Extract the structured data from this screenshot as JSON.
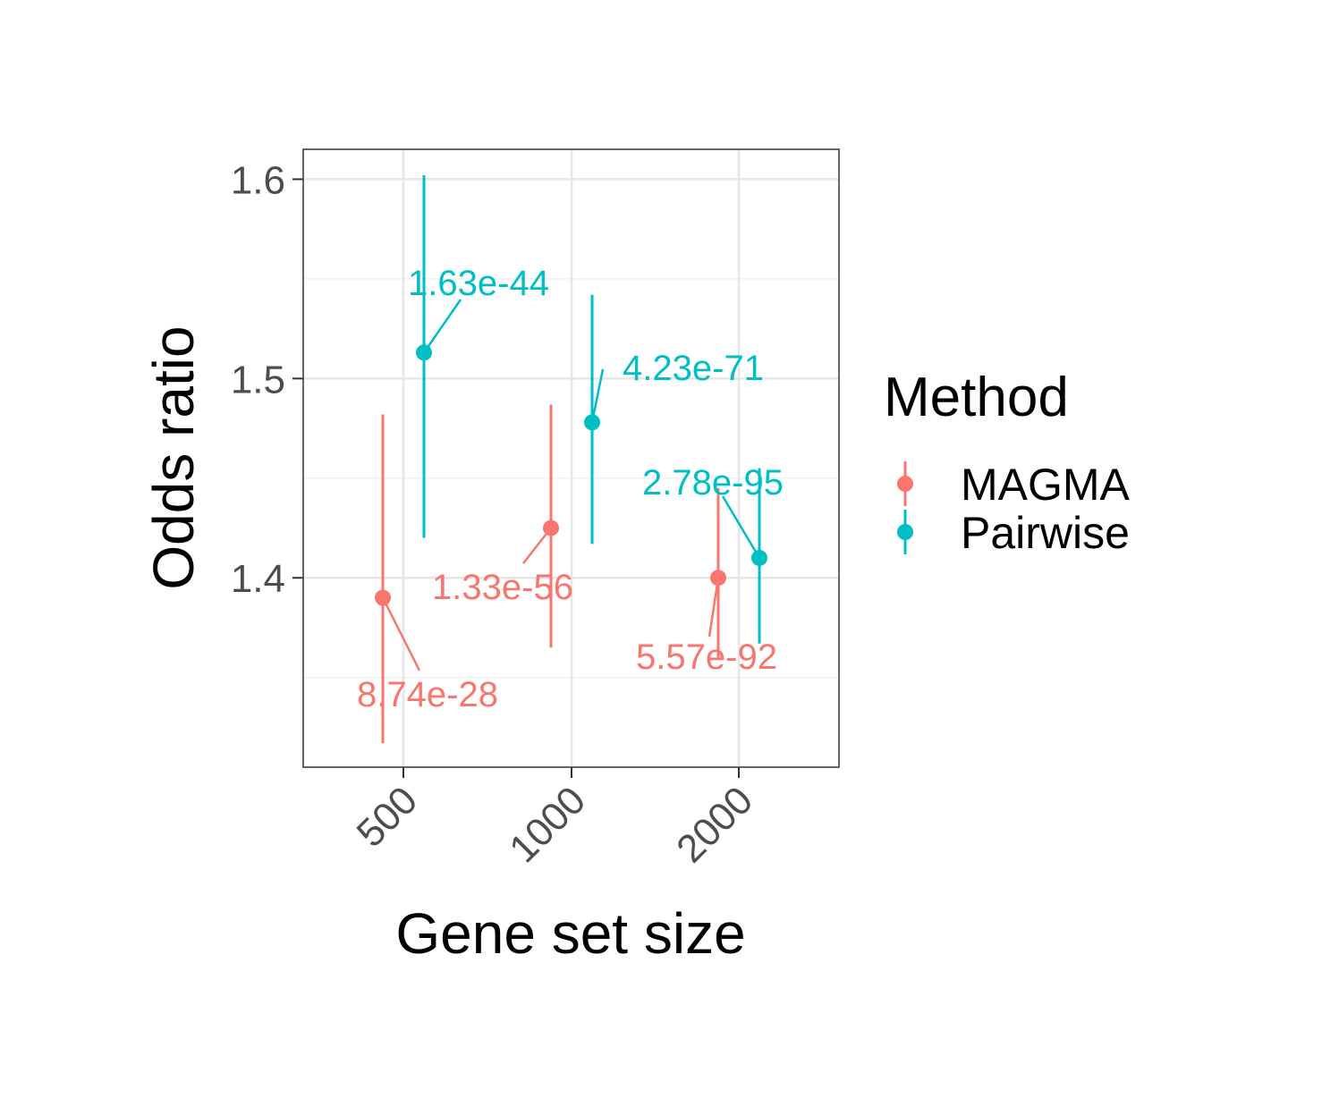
{
  "chart_data": {
    "type": "scatter",
    "xlabel": "Gene set size",
    "ylabel": "Odds ratio",
    "x_scale": "log",
    "x_ticks": [
      "500",
      "1000",
      "2000"
    ],
    "y_ticks": [
      "1.4",
      "1.5",
      "1.6"
    ],
    "ylim": [
      1.305,
      1.615
    ],
    "grid": true,
    "legend": {
      "title": "Method",
      "position": "right"
    },
    "series": [
      {
        "name": "MAGMA",
        "color": "#F8766D",
        "points": [
          {
            "group": "500",
            "y": 1.39,
            "ymin": 1.317,
            "ymax": 1.482,
            "label": "8.74e-28"
          },
          {
            "group": "1000",
            "y": 1.425,
            "ymin": 1.365,
            "ymax": 1.487,
            "label": "1.33e-56"
          },
          {
            "group": "2000",
            "y": 1.4,
            "ymin": 1.36,
            "ymax": 1.445,
            "label": "5.57e-92"
          }
        ]
      },
      {
        "name": "Pairwise",
        "color": "#00BFC4",
        "points": [
          {
            "group": "500",
            "y": 1.513,
            "ymin": 1.42,
            "ymax": 1.602,
            "label": "1.63e-44"
          },
          {
            "group": "1000",
            "y": 1.478,
            "ymin": 1.417,
            "ymax": 1.542,
            "label": "4.23e-71"
          },
          {
            "group": "2000",
            "y": 1.41,
            "ymin": 1.367,
            "ymax": 1.455,
            "label": "2.78e-95"
          }
        ]
      }
    ]
  }
}
